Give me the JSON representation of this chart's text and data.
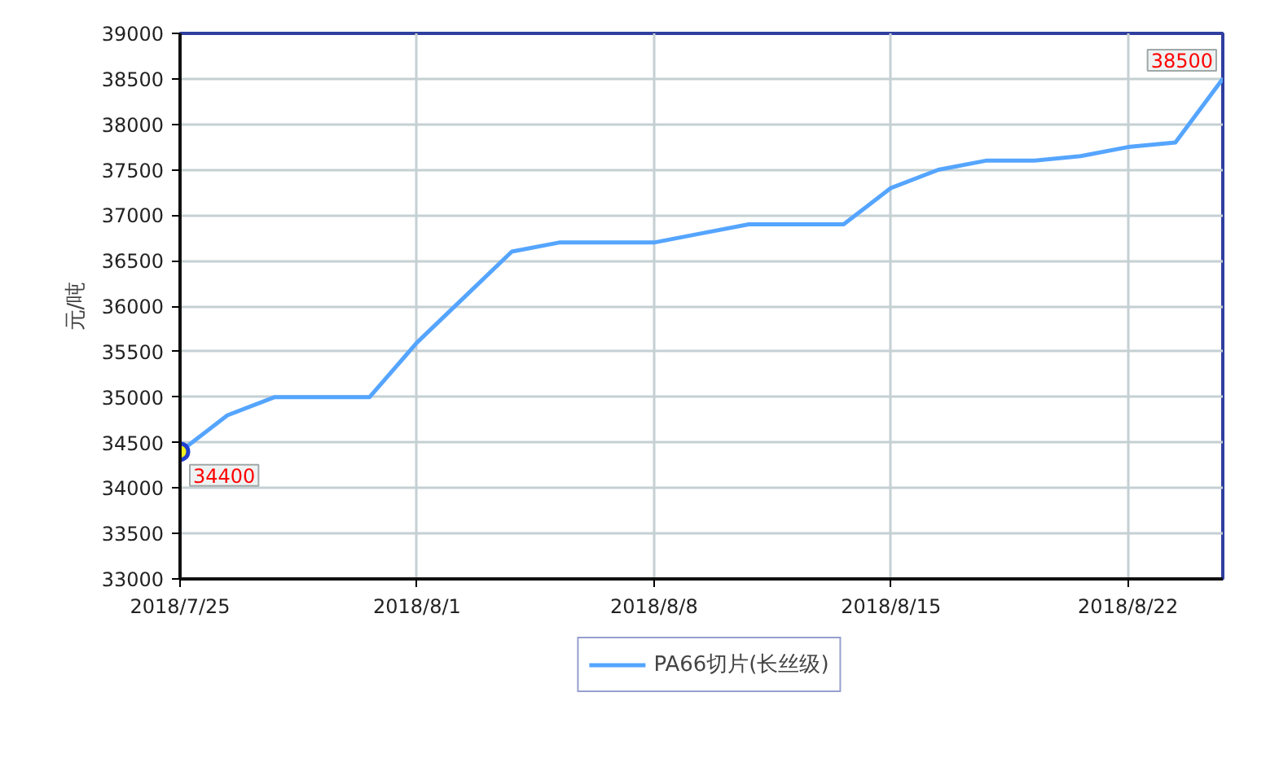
{
  "chart_data": {
    "type": "line",
    "ylabel": "元/吨",
    "categories": [
      "2018/7/25",
      null,
      null,
      null,
      null,
      "2018/8/1",
      null,
      null,
      null,
      null,
      "2018/8/8",
      null,
      null,
      null,
      null,
      "2018/8/15",
      null,
      null,
      null,
      null,
      "2018/8/22",
      null,
      null
    ],
    "series": [
      {
        "name": "PA66切片(长丝级)",
        "color": "#55a5ff",
        "values": [
          34400,
          34800,
          35000,
          35000,
          35000,
          35600,
          36100,
          36600,
          36700,
          36700,
          36700,
          36800,
          36900,
          36900,
          36900,
          37300,
          37500,
          37600,
          37600,
          37650,
          37750,
          37800,
          38500
        ]
      }
    ],
    "ylim": [
      33000,
      39000
    ],
    "yticks": [
      33000,
      33500,
      34000,
      34500,
      35000,
      35500,
      36000,
      36500,
      37000,
      37500,
      38000,
      38500,
      39000
    ],
    "annotations": [
      {
        "text": "34400",
        "x": "2018/7/25",
        "y": 34400
      },
      "38500"
    ],
    "grid": true,
    "legend": "bottom",
    "marker": "none",
    "line_style": "solid"
  }
}
